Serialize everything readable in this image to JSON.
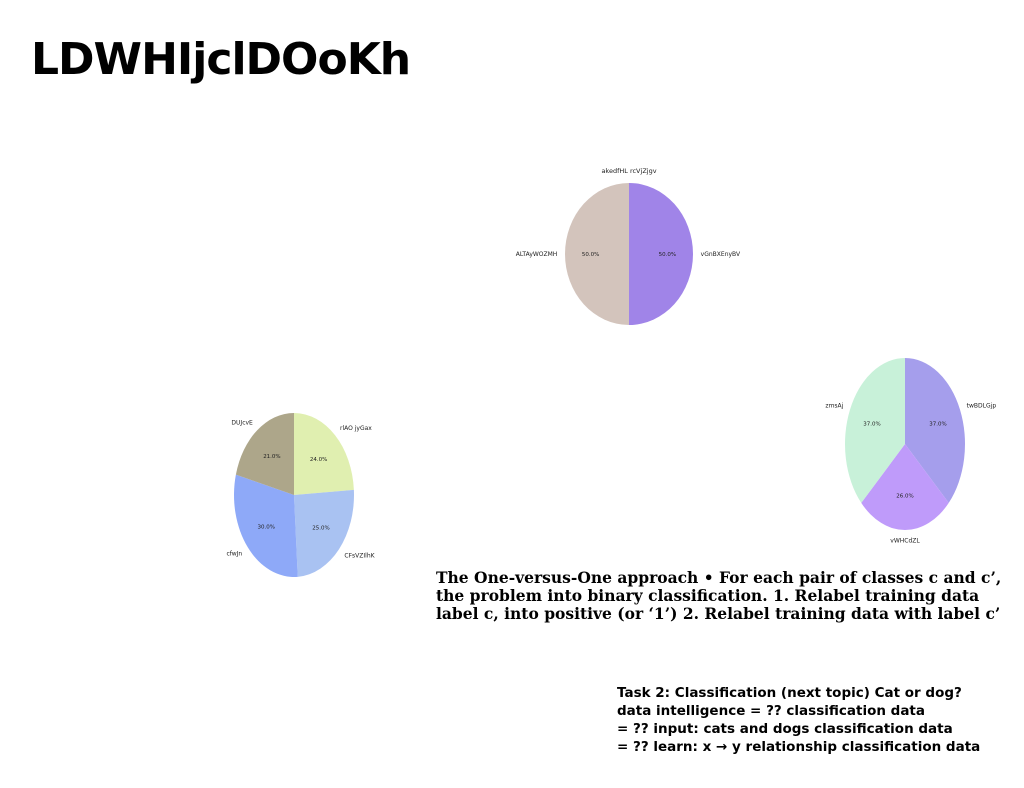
{
  "page": {
    "title": "LDWHIjclDOoKh",
    "paragraph_ovo": [
      "The One-versus-One approach • For each pair of classes c and c’,",
      "the problem into binary classification. 1. Relabel training data",
      "label c, into positive (or ‘1’) 2. Relabel training data with label c’"
    ],
    "paragraph_task": [
      "Task 2: Classification (next topic) Cat or dog?",
      "data intelligence = ?? classification data",
      "= ?? input: cats and dogs classification data",
      "= ?? learn: x → y relationship classification data"
    ]
  },
  "chart_data": [
    {
      "type": "pie",
      "title": "akedfHL rcVjZjgv",
      "categories": [
        "vGnBXEnyBV",
        "ALTAyWOZMH"
      ],
      "values": [
        50.0,
        50.0
      ],
      "labels": [
        "50.0%",
        "50.0%"
      ],
      "colors": [
        "#a084e8",
        "#d3c4bc"
      ]
    },
    {
      "type": "pie",
      "title": "",
      "categories": [
        "twBDLGjp",
        "vWHCdZL",
        "zmsAj"
      ],
      "values": [
        37.0,
        26.0,
        37.0
      ],
      "labels": [
        "37.0%",
        "26.0%",
        "37.0%"
      ],
      "colors": [
        "#a59eec",
        "#bf9bfa",
        "#c8f1d9"
      ]
    },
    {
      "type": "pie",
      "title": "",
      "categories": [
        "rlAO jyGax",
        "CFsVZIlhK",
        "cfwJn",
        "DUJcvE"
      ],
      "values": [
        24.0,
        25.0,
        30.0,
        21.0
      ],
      "labels": [
        "24.0%",
        "25.0%",
        "30.0%",
        "21.0%"
      ],
      "colors": [
        "#e0efb0",
        "#a9c2f2",
        "#8ea9f8",
        "#ada68a"
      ]
    }
  ]
}
